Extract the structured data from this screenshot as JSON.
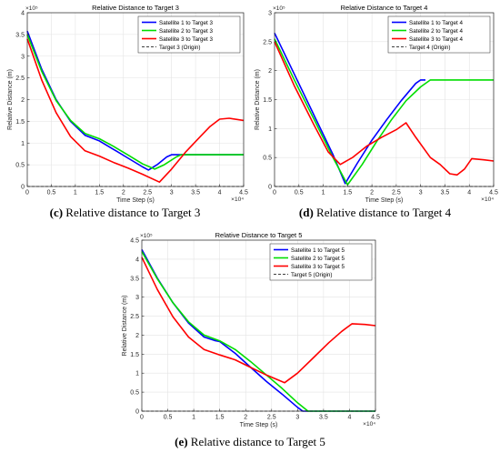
{
  "chart_data": [
    {
      "type": "line",
      "title": "Relative Distance to Target 3",
      "xlabel": "Time Step (s)",
      "ylabel": "Relative Distance (m)",
      "x_multiplier": "×10⁴",
      "y_multiplier": "×10⁵",
      "xlim": [
        0,
        45000
      ],
      "ylim": [
        0,
        400000
      ],
      "xticks": [
        "0",
        "0.5",
        "1",
        "1.5",
        "2",
        "2.5",
        "3",
        "3.5",
        "4",
        "4.5"
      ],
      "yticks": [
        "0",
        "0.5",
        "1",
        "1.5",
        "2",
        "2.5",
        "3",
        "3.5",
        "4"
      ],
      "grid": true,
      "legend_position": "top-right",
      "caption_letter": "(c)",
      "caption_text": "Relative distance to Target 3",
      "series": [
        {
          "name": "Satellite 1 to Target 3",
          "color": "#0000ff",
          "dashed": false,
          "points": [
            [
              0,
              358000
            ],
            [
              3000,
              270000
            ],
            [
              6000,
              200000
            ],
            [
              9000,
              150000
            ],
            [
              12000,
              118000
            ],
            [
              15000,
              105000
            ],
            [
              18000,
              85000
            ],
            [
              21000,
              65000
            ],
            [
              24000,
              45000
            ],
            [
              25200,
              38000
            ],
            [
              27000,
              50000
            ],
            [
              29000,
              68000
            ],
            [
              30000,
              73000
            ],
            [
              45000,
              73000
            ]
          ]
        },
        {
          "name": "Satellite 2 to Target 3",
          "color": "#00dd00",
          "dashed": false,
          "points": [
            [
              0,
              350000
            ],
            [
              3000,
              265000
            ],
            [
              6000,
              198000
            ],
            [
              9000,
              152000
            ],
            [
              12000,
              122000
            ],
            [
              15000,
              110000
            ],
            [
              18000,
              92000
            ],
            [
              21000,
              72000
            ],
            [
              24000,
              52000
            ],
            [
              26500,
              40000
            ],
            [
              28500,
              50000
            ],
            [
              31000,
              68000
            ],
            [
              32000,
              73000
            ],
            [
              45000,
              73000
            ]
          ]
        },
        {
          "name": "Satellite 3 to Target 3",
          "color": "#ff0000",
          "dashed": false,
          "points": [
            [
              0,
              340000
            ],
            [
              3000,
              245000
            ],
            [
              6000,
              170000
            ],
            [
              9000,
              115000
            ],
            [
              12000,
              82000
            ],
            [
              15000,
              70000
            ],
            [
              18000,
              55000
            ],
            [
              21000,
              42000
            ],
            [
              24000,
              28000
            ],
            [
              27500,
              10000
            ],
            [
              30000,
              40000
            ],
            [
              33000,
              80000
            ],
            [
              36000,
              115000
            ],
            [
              38000,
              138000
            ],
            [
              40000,
              155000
            ],
            [
              42000,
              157000
            ],
            [
              45000,
              152000
            ]
          ]
        },
        {
          "name": "Target 3 (Origin)",
          "color": "#000000",
          "dashed": true,
          "points": [
            [
              0,
              0
            ],
            [
              45000,
              0
            ]
          ]
        }
      ]
    },
    {
      "type": "line",
      "title": "Relative Distance to Target 4",
      "xlabel": "Time Step (s)",
      "ylabel": "Relative Distance (m)",
      "x_multiplier": "×10⁴",
      "y_multiplier": "×10⁵",
      "xlim": [
        0,
        45000
      ],
      "ylim": [
        0,
        300000
      ],
      "xticks": [
        "0",
        "0.5",
        "1",
        "1.5",
        "2",
        "2.5",
        "3",
        "3.5",
        "4",
        "4.5"
      ],
      "yticks": [
        "0",
        "0.5",
        "1",
        "1.5",
        "2",
        "2.5",
        "3"
      ],
      "grid": true,
      "legend_position": "top-right",
      "caption_letter": "(d)",
      "caption_text": "Relative distance to Target 4",
      "series": [
        {
          "name": "Satellite 1 to Target 4",
          "color": "#0000ff",
          "dashed": false,
          "points": [
            [
              0,
              265000
            ],
            [
              4000,
              195000
            ],
            [
              8000,
              125000
            ],
            [
              12000,
              55000
            ],
            [
              14500,
              5000
            ],
            [
              17000,
              40000
            ],
            [
              20000,
              80000
            ],
            [
              23000,
              115000
            ],
            [
              26000,
              148000
            ],
            [
              29000,
              178000
            ],
            [
              30000,
              184000
            ],
            [
              31000,
              184000
            ]
          ]
        },
        {
          "name": "Satellite 2 to Target 4",
          "color": "#00dd00",
          "dashed": false,
          "points": [
            [
              0,
              255000
            ],
            [
              4000,
              185000
            ],
            [
              8000,
              118000
            ],
            [
              12000,
              50000
            ],
            [
              15000,
              3000
            ],
            [
              18000,
              38000
            ],
            [
              21000,
              78000
            ],
            [
              24000,
              115000
            ],
            [
              27000,
              148000
            ],
            [
              30000,
              172000
            ],
            [
              32000,
              184000
            ],
            [
              45000,
              184000
            ]
          ]
        },
        {
          "name": "Satellite 3 to Target 4",
          "color": "#ff0000",
          "dashed": false,
          "points": [
            [
              0,
              250000
            ],
            [
              4000,
              175000
            ],
            [
              8000,
              108000
            ],
            [
              11000,
              60000
            ],
            [
              13500,
              38000
            ],
            [
              16000,
              50000
            ],
            [
              19000,
              70000
            ],
            [
              22000,
              85000
            ],
            [
              25000,
              98000
            ],
            [
              27000,
              110000
            ],
            [
              29000,
              85000
            ],
            [
              32000,
              50000
            ],
            [
              34000,
              38000
            ],
            [
              36000,
              22000
            ],
            [
              37500,
              20000
            ],
            [
              39000,
              30000
            ],
            [
              40500,
              48000
            ],
            [
              43000,
              46000
            ],
            [
              45000,
              44000
            ]
          ]
        },
        {
          "name": "Target 4 (Origin)",
          "color": "#000000",
          "dashed": true,
          "points": [
            [
              0,
              0
            ],
            [
              45000,
              0
            ]
          ]
        }
      ]
    },
    {
      "type": "line",
      "title": "Relative Distance to Target 5",
      "xlabel": "Time Step (s)",
      "ylabel": "Relative Distance (m)",
      "x_multiplier": "×10⁴",
      "y_multiplier": "×10⁵",
      "xlim": [
        0,
        45000
      ],
      "ylim": [
        0,
        450000
      ],
      "xticks": [
        "0",
        "0.5",
        "1",
        "1.5",
        "2",
        "2.5",
        "3",
        "3.5",
        "4",
        "4.5"
      ],
      "yticks": [
        "0",
        "0.5",
        "1",
        "1.5",
        "2",
        "2.5",
        "3",
        "3.5",
        "4",
        "4.5"
      ],
      "grid": true,
      "legend_position": "top-right",
      "caption_letter": "(e)",
      "caption_text": "Relative distance to Target 5",
      "series": [
        {
          "name": "Satellite 1 to Target 5",
          "color": "#0000ff",
          "dashed": false,
          "points": [
            [
              0,
              425000
            ],
            [
              3000,
              350000
            ],
            [
              6000,
              285000
            ],
            [
              9000,
              232000
            ],
            [
              12000,
              195000
            ],
            [
              14000,
              186000
            ],
            [
              15000,
              183000
            ],
            [
              18000,
              152000
            ],
            [
              21000,
              115000
            ],
            [
              24000,
              78000
            ],
            [
              27000,
              45000
            ],
            [
              30000,
              10000
            ],
            [
              31000,
              0
            ],
            [
              45000,
              0
            ]
          ]
        },
        {
          "name": "Satellite 2 to Target 5",
          "color": "#00dd00",
          "dashed": false,
          "points": [
            [
              0,
              420000
            ],
            [
              3000,
              348000
            ],
            [
              6000,
              285000
            ],
            [
              9000,
              235000
            ],
            [
              12000,
              200000
            ],
            [
              15000,
              185000
            ],
            [
              18000,
              162000
            ],
            [
              21000,
              130000
            ],
            [
              24000,
              95000
            ],
            [
              27000,
              60000
            ],
            [
              30000,
              22000
            ],
            [
              32000,
              0
            ],
            [
              45000,
              0
            ]
          ]
        },
        {
          "name": "Satellite 3 to Target 5",
          "color": "#ff0000",
          "dashed": false,
          "points": [
            [
              0,
              405000
            ],
            [
              3000,
              320000
            ],
            [
              6000,
              248000
            ],
            [
              9000,
              195000
            ],
            [
              12000,
              162000
            ],
            [
              15000,
              148000
            ],
            [
              18000,
              135000
            ],
            [
              21000,
              115000
            ],
            [
              24000,
              95000
            ],
            [
              27500,
              75000
            ],
            [
              30000,
              100000
            ],
            [
              33000,
              140000
            ],
            [
              36000,
              180000
            ],
            [
              38500,
              210000
            ],
            [
              40500,
              230000
            ],
            [
              43000,
              228000
            ],
            [
              45000,
              225000
            ]
          ]
        },
        {
          "name": "Target 5 (Origin)",
          "color": "#000000",
          "dashed": true,
          "points": [
            [
              0,
              0
            ],
            [
              45000,
              0
            ]
          ]
        }
      ]
    }
  ]
}
